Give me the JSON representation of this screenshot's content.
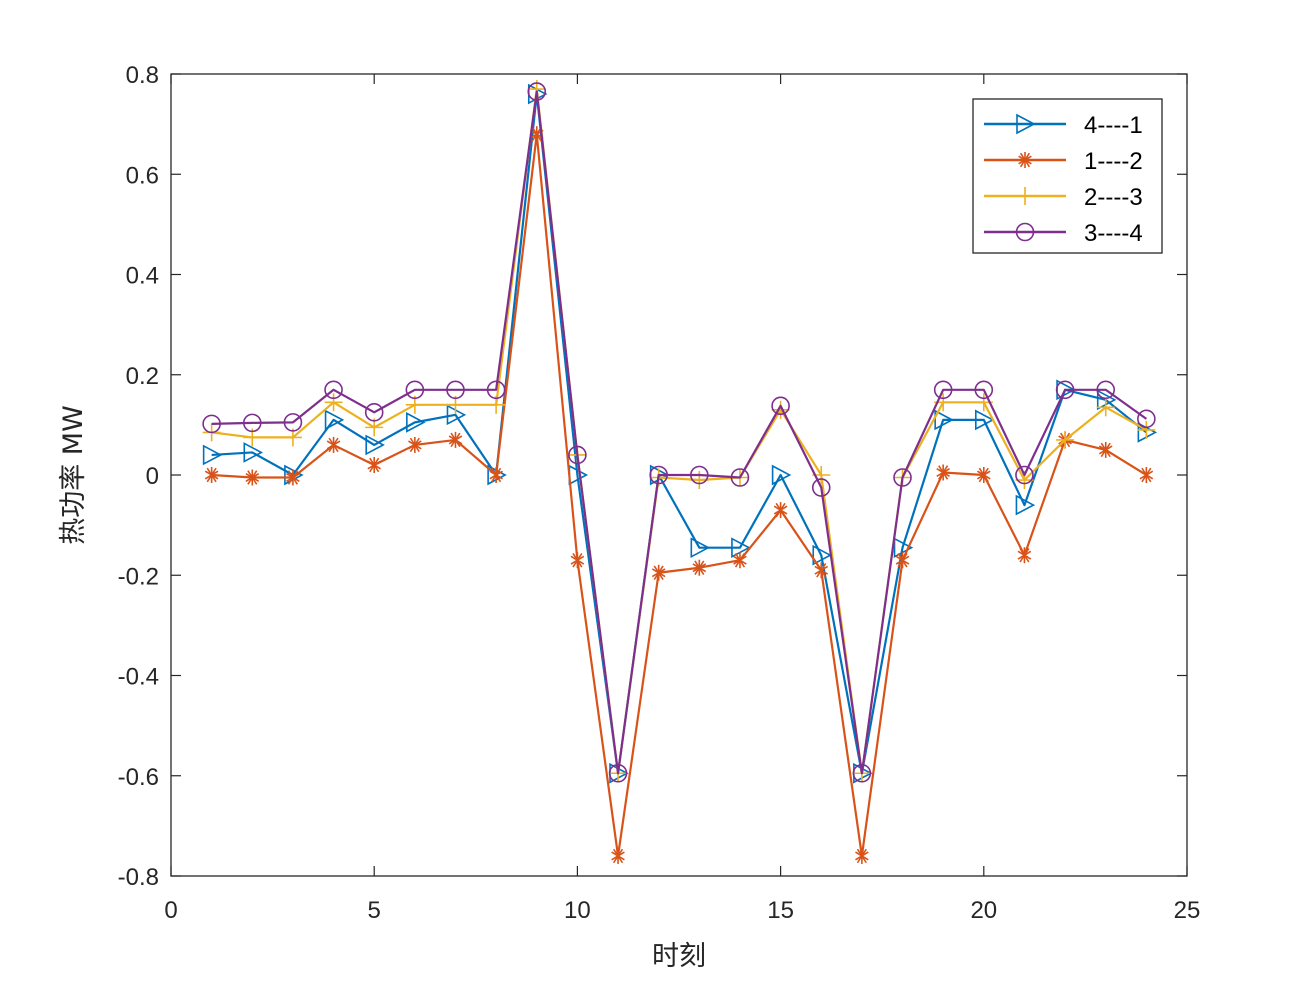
{
  "chart_data": {
    "type": "line",
    "xlabel": "时刻",
    "ylabel": "热功率 MW",
    "xlim": [
      0,
      25
    ],
    "ylim": [
      -0.8,
      0.8
    ],
    "xticks": [
      0,
      5,
      10,
      15,
      20,
      25
    ],
    "yticks": [
      -0.8,
      -0.6,
      -0.4,
      -0.2,
      0,
      0.2,
      0.4,
      0.6,
      0.8
    ],
    "ytick_labels": [
      "-0.8",
      "-0.6",
      "-0.4",
      "-0.2",
      "0",
      "0.2",
      "0.4",
      "0.6",
      "0.8"
    ],
    "grid": false,
    "legend_position": "top-right",
    "x": [
      1,
      2,
      3,
      4,
      5,
      6,
      7,
      8,
      9,
      10,
      11,
      12,
      13,
      14,
      15,
      16,
      17,
      18,
      19,
      20,
      21,
      22,
      23,
      24
    ],
    "series": [
      {
        "name": "4----1",
        "color": "#0072BD",
        "marker": "triangle-right",
        "values": [
          0.04,
          0.045,
          0.0,
          0.11,
          0.06,
          0.105,
          0.12,
          0.0,
          0.76,
          0.0,
          -0.595,
          0.0,
          -0.145,
          -0.145,
          0.0,
          -0.16,
          -0.595,
          -0.145,
          0.11,
          0.11,
          -0.06,
          0.17,
          0.15,
          0.085
        ]
      },
      {
        "name": "1----2",
        "color": "#D95319",
        "marker": "asterisk",
        "values": [
          0.0,
          -0.005,
          -0.005,
          0.06,
          0.02,
          0.06,
          0.07,
          0.0,
          0.68,
          -0.17,
          -0.76,
          -0.195,
          -0.185,
          -0.17,
          -0.07,
          -0.19,
          -0.76,
          -0.17,
          0.005,
          0.0,
          -0.16,
          0.07,
          0.05,
          0.0
        ]
      },
      {
        "name": "2----3",
        "color": "#EDB120",
        "marker": "plus",
        "values": [
          0.085,
          0.075,
          0.075,
          0.145,
          0.095,
          0.14,
          0.14,
          0.14,
          0.77,
          0.04,
          -0.595,
          -0.005,
          -0.01,
          -0.005,
          0.13,
          0.0,
          -0.595,
          -0.005,
          0.145,
          0.145,
          -0.01,
          0.07,
          0.135,
          0.09
        ]
      },
      {
        "name": "3----4",
        "color": "#7E2F8E",
        "marker": "circle",
        "values": [
          0.102,
          0.104,
          0.105,
          0.17,
          0.125,
          0.17,
          0.17,
          0.17,
          0.765,
          0.04,
          -0.595,
          0.0,
          0.0,
          -0.005,
          0.138,
          -0.025,
          -0.595,
          -0.005,
          0.17,
          0.17,
          0.0,
          0.17,
          0.17,
          0.112
        ]
      }
    ]
  }
}
